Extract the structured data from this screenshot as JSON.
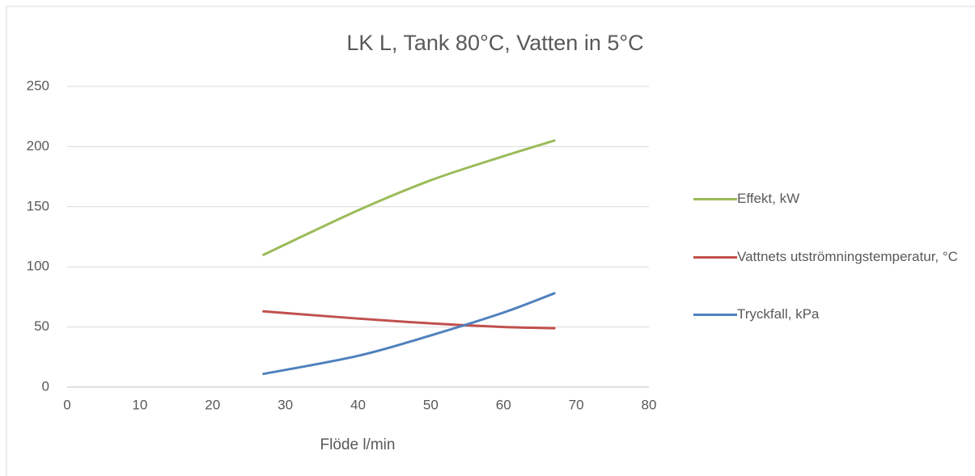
{
  "chart_data": {
    "type": "line",
    "title": "LK L,  Tank 80°C, Vatten in 5°C",
    "x_label": "Flöde l/min",
    "x": [
      27,
      40,
      50,
      60,
      67
    ],
    "series": [
      {
        "name": "Effekt, kW",
        "color": "#9bbb59",
        "values": [
          110,
          147,
          172,
          192,
          205
        ]
      },
      {
        "name": "Vattnets utströmningstemperatur, °C",
        "color": "#c0504d",
        "values": [
          63,
          57,
          53,
          50,
          49
        ]
      },
      {
        "name": "Tryckfall, kPa",
        "color": "#4f81bd",
        "values": [
          11,
          26,
          43,
          62,
          78
        ]
      }
    ],
    "xlim": [
      0,
      80
    ],
    "xticks": [
      0,
      10,
      20,
      30,
      40,
      50,
      60,
      70,
      80
    ],
    "ylim": [
      0,
      250
    ],
    "yticks": [
      0,
      50,
      100,
      150,
      200,
      250
    ],
    "grid": true,
    "legend": "right"
  }
}
